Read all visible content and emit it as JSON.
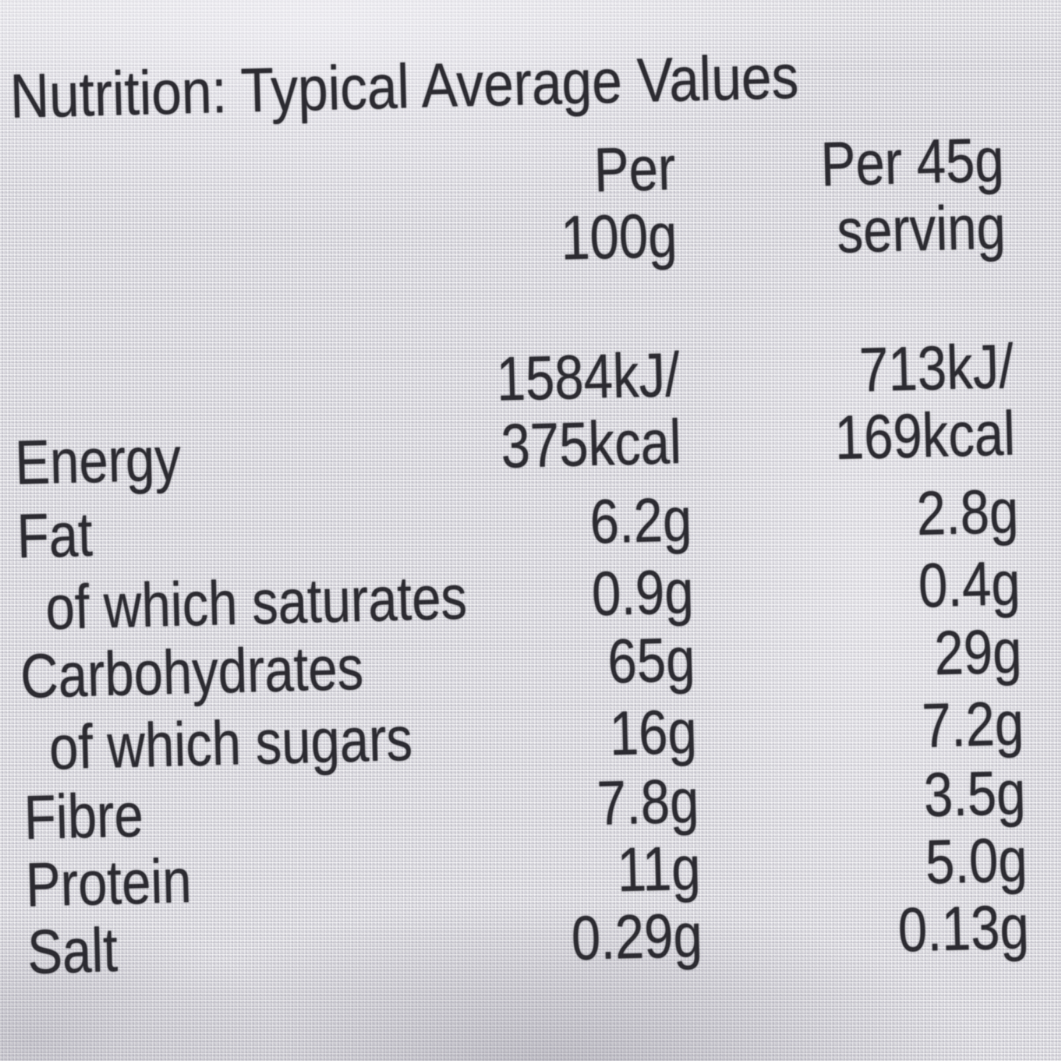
{
  "label": {
    "title": "Nutrition: Typical Average Values",
    "columns": {
      "per100": [
        "Per",
        "100g"
      ],
      "per45": [
        "Per 45g",
        "serving"
      ]
    },
    "rows": [
      {
        "name": "Energy",
        "per100": [
          "1584kJ/",
          "375kcal"
        ],
        "per45": [
          "713kJ/",
          "169kcal"
        ]
      },
      {
        "name": "Fat",
        "per100": "6.2g",
        "per45": "2.8g"
      },
      {
        "name": "of which saturates",
        "per100": "0.9g",
        "per45": "0.4g"
      },
      {
        "name": "Carbohydrates",
        "per100": "65g",
        "per45": "29g"
      },
      {
        "name": "of which sugars",
        "per100": "16g",
        "per45": "7.2g"
      },
      {
        "name": "Fibre",
        "per100": "7.8g",
        "per45": "3.5g"
      },
      {
        "name": "Protein",
        "per100": "11g",
        "per45": "5.0g"
      },
      {
        "name": "Salt",
        "per100": "0.29g",
        "per45": "0.13g"
      }
    ],
    "colors": {
      "text": "#2c2b31",
      "background": "#d8d7dd"
    }
  }
}
